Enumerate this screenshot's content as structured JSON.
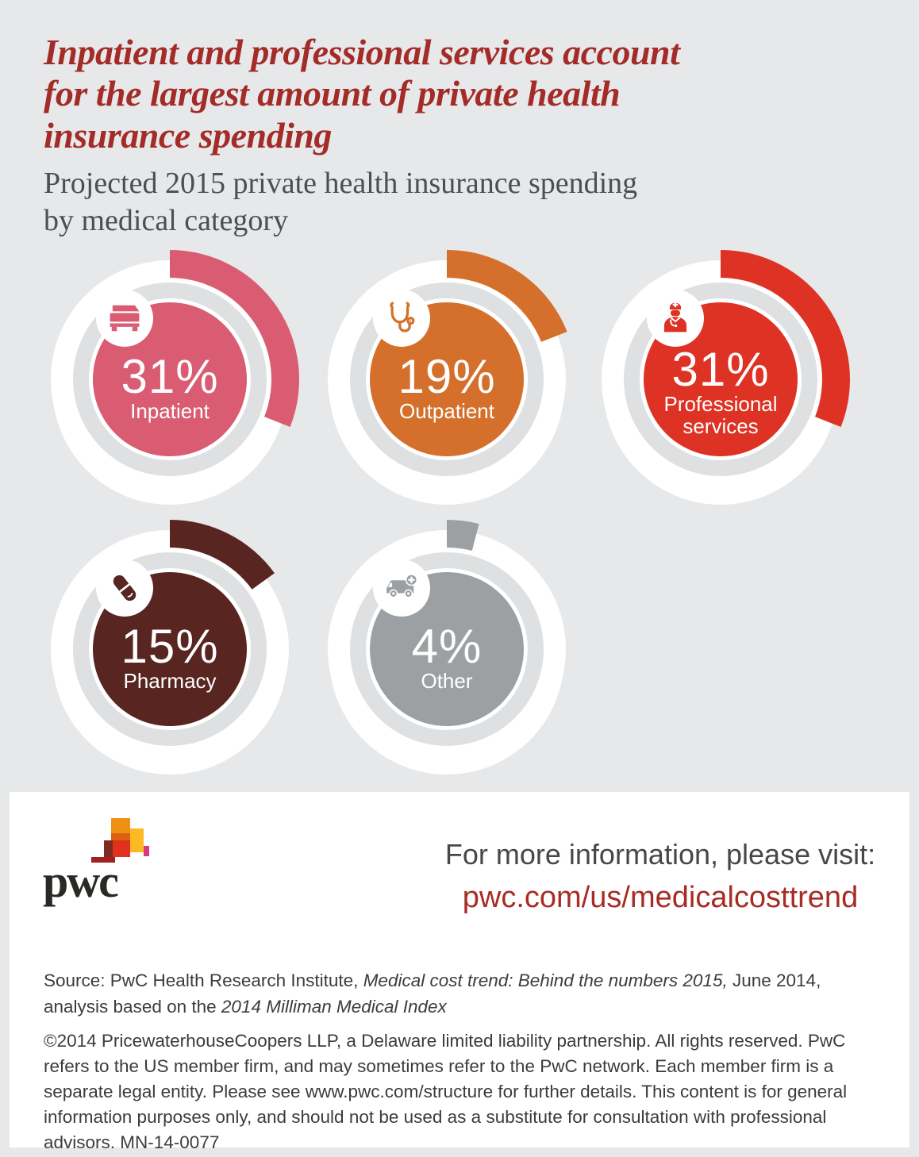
{
  "title_lines": [
    "Inpatient and professional services account",
    "for the largest amount of private health",
    "insurance spending"
  ],
  "subtitle_lines": [
    "Projected 2015 private health insurance spending",
    "by medical category"
  ],
  "chart_data": {
    "type": "pie",
    "title": "Projected 2015 private health insurance spending by medical category",
    "unit": "%",
    "categories": [
      "Inpatient",
      "Outpatient",
      "Professional services",
      "Pharmacy",
      "Other"
    ],
    "values": [
      31,
      19,
      31,
      15,
      4
    ],
    "track_color": "#dfe0e1",
    "ring_color": "#ffffff",
    "background_color": "#e7e8e9",
    "segments": [
      {
        "label": "Inpatient",
        "value": 31,
        "display": "31%",
        "color": "#d95c72",
        "icon": "bed-icon",
        "label_lines": [
          "Inpatient"
        ]
      },
      {
        "label": "Outpatient",
        "value": 19,
        "display": "19%",
        "color": "#d4702b",
        "icon": "stethoscope-icon",
        "label_lines": [
          "Outpatient"
        ]
      },
      {
        "label": "Professional services",
        "value": 31,
        "display": "31%",
        "color": "#de3224",
        "icon": "doctor-icon",
        "label_lines": [
          "Professional",
          "services"
        ]
      },
      {
        "label": "Pharmacy",
        "value": 15,
        "display": "15%",
        "color": "#582521",
        "icon": "pill-icon",
        "label_lines": [
          "Pharmacy"
        ]
      },
      {
        "label": "Other",
        "value": 4,
        "display": "4%",
        "color": "#9da0a2",
        "icon": "ambulance-icon",
        "label_lines": [
          "Other"
        ]
      }
    ]
  },
  "footer": {
    "logo_text": "pwc",
    "info_heading": "For more information, please visit:",
    "info_url": "pwc.com/us/medicalcosttrend",
    "legal": "©2014 PricewaterhouseCoopers LLP, a Delaware limited liability partnership. All rights reserved. PwC refers to the US member firm, and may sometimes refer to the PwC network. Each member firm is a separate legal entity. Please see www.pwc.com/structure for further details. This content is for general information purposes only, and should not be used as a substitute for consultation with professional advisors. MN-14-0077"
  },
  "source": {
    "segments": [
      {
        "text": "Source: PwC Health Research Institute, ",
        "italic": false
      },
      {
        "text": "Medical cost trend: Behind the numbers 2015,",
        "italic": true
      },
      {
        "text": " June 2014, analysis based on the ",
        "italic": false
      },
      {
        "text": "2014 Milliman Medical Index",
        "italic": true
      }
    ]
  },
  "logo_mosaic_colors": [
    "#ee9013",
    "#fdb924",
    "#d9610f",
    "#7d2b20",
    "#e0301e",
    "#d93984",
    "#a32020"
  ]
}
